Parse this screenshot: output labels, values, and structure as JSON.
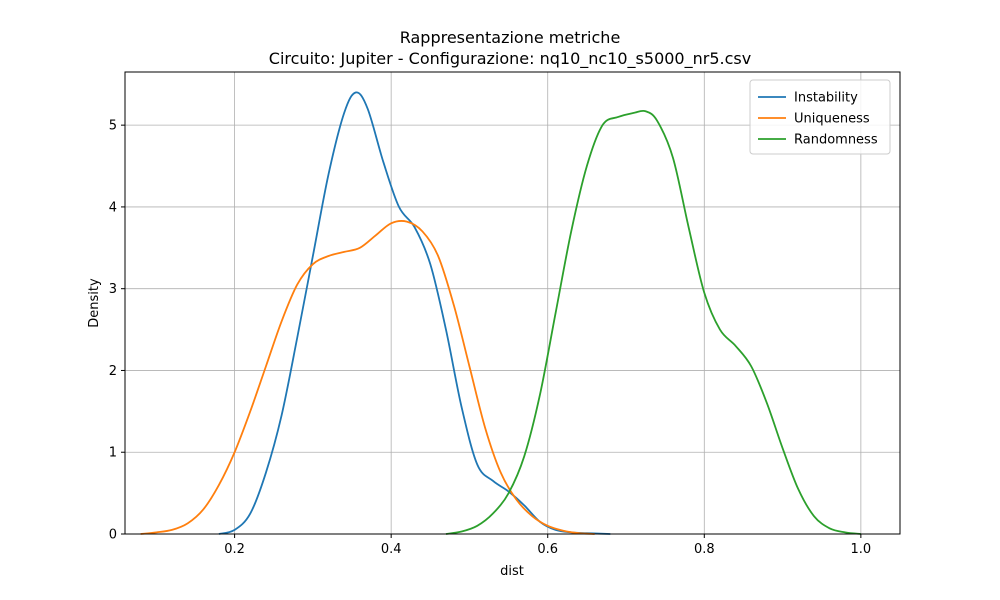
{
  "chart_data": {
    "type": "line",
    "title": "Rappresentazione metriche",
    "subtitle": "Circuito: Jupiter - Configurazione: nq10_nc10_s5000_nr5.csv",
    "xlabel": "dist",
    "ylabel": "Density",
    "xlim": [
      0.06,
      1.05
    ],
    "ylim": [
      0,
      5.65
    ],
    "xticks": [
      0.2,
      0.4,
      0.6,
      0.8,
      1.0
    ],
    "xtick_labels": [
      "0.2",
      "0.4",
      "0.6",
      "0.8",
      "1.0"
    ],
    "yticks": [
      0,
      1,
      2,
      3,
      4,
      5
    ],
    "ytick_labels": [
      "0",
      "1",
      "2",
      "3",
      "4",
      "5"
    ],
    "grid": true,
    "legend_position": "top-right",
    "series": [
      {
        "name": "Instability",
        "color": "#1f77b4",
        "x": [
          0.18,
          0.2,
          0.22,
          0.24,
          0.26,
          0.28,
          0.3,
          0.32,
          0.34,
          0.355,
          0.37,
          0.39,
          0.41,
          0.43,
          0.45,
          0.47,
          0.49,
          0.51,
          0.53,
          0.55,
          0.57,
          0.59,
          0.61,
          0.63,
          0.65,
          0.68
        ],
        "y": [
          0.0,
          0.05,
          0.25,
          0.75,
          1.45,
          2.4,
          3.4,
          4.4,
          5.15,
          5.4,
          5.2,
          4.55,
          4.0,
          3.75,
          3.3,
          2.5,
          1.55,
          0.85,
          0.65,
          0.52,
          0.35,
          0.15,
          0.05,
          0.02,
          0.01,
          0.0
        ]
      },
      {
        "name": "Uniqueness",
        "color": "#ff7f0e",
        "x": [
          0.08,
          0.1,
          0.12,
          0.14,
          0.16,
          0.18,
          0.2,
          0.22,
          0.24,
          0.26,
          0.28,
          0.3,
          0.32,
          0.34,
          0.36,
          0.38,
          0.4,
          0.42,
          0.44,
          0.46,
          0.48,
          0.5,
          0.52,
          0.54,
          0.56,
          0.58,
          0.6,
          0.62,
          0.64,
          0.66
        ],
        "y": [
          0.0,
          0.02,
          0.05,
          0.13,
          0.3,
          0.6,
          1.0,
          1.5,
          2.05,
          2.6,
          3.05,
          3.3,
          3.4,
          3.45,
          3.5,
          3.65,
          3.8,
          3.82,
          3.7,
          3.4,
          2.8,
          2.05,
          1.3,
          0.75,
          0.42,
          0.22,
          0.1,
          0.04,
          0.01,
          0.0
        ]
      },
      {
        "name": "Randomness",
        "color": "#2ca02c",
        "x": [
          0.47,
          0.49,
          0.51,
          0.53,
          0.55,
          0.57,
          0.59,
          0.61,
          0.63,
          0.65,
          0.67,
          0.69,
          0.71,
          0.725,
          0.74,
          0.76,
          0.78,
          0.8,
          0.82,
          0.84,
          0.86,
          0.88,
          0.9,
          0.92,
          0.94,
          0.96,
          0.98,
          1.0
        ],
        "y": [
          0.0,
          0.03,
          0.1,
          0.25,
          0.5,
          0.95,
          1.7,
          2.7,
          3.7,
          4.5,
          5.0,
          5.1,
          5.15,
          5.17,
          5.05,
          4.6,
          3.75,
          2.95,
          2.5,
          2.3,
          2.05,
          1.6,
          1.05,
          0.55,
          0.22,
          0.07,
          0.02,
          0.0
        ]
      }
    ]
  }
}
